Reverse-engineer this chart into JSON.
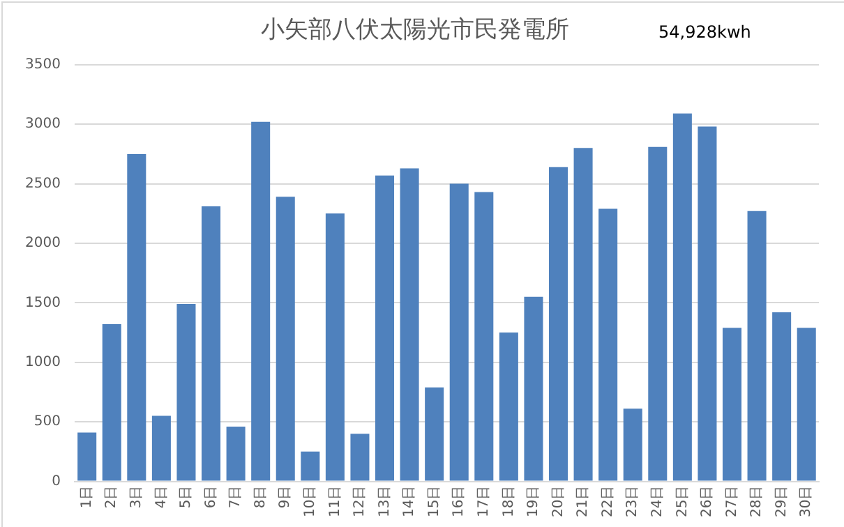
{
  "chart_data": {
    "type": "bar",
    "title": "小矢部八伏太陽光市民発電所",
    "annotations": [
      "54,928kwh"
    ],
    "categories": [
      "1日",
      "2日",
      "3日",
      "4日",
      "5日",
      "6日",
      "7日",
      "8日",
      "9日",
      "10日",
      "11日",
      "12日",
      "13日",
      "14日",
      "15日",
      "16日",
      "17日",
      "18日",
      "19日",
      "20日",
      "21日",
      "22日",
      "23日",
      "24日",
      "25日",
      "26日",
      "27日",
      "28日",
      "29日",
      "30日"
    ],
    "values": [
      410,
      1320,
      2750,
      550,
      1490,
      2310,
      460,
      3020,
      2390,
      250,
      2250,
      400,
      2570,
      2630,
      790,
      2500,
      2430,
      1250,
      1550,
      2640,
      2800,
      2290,
      610,
      2810,
      3090,
      2980,
      1290,
      2270,
      1420,
      1290
    ],
    "color": "#4f81bd",
    "ylim": [
      0,
      3500
    ],
    "yticks": [
      0,
      500,
      1000,
      1500,
      2000,
      2500,
      3000,
      3500
    ],
    "grid": "y"
  }
}
